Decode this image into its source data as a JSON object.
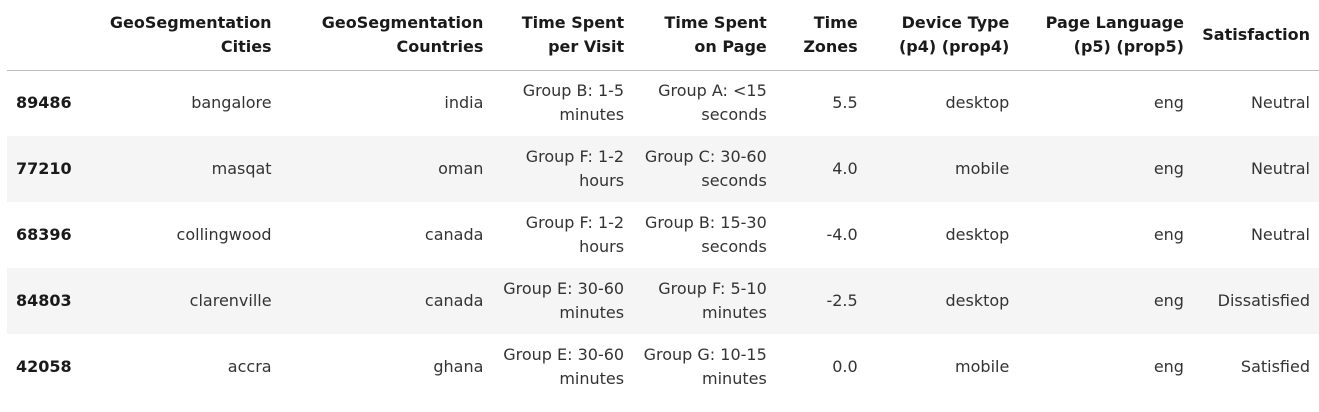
{
  "table": {
    "columns": [
      "",
      "GeoSegmentation Cities",
      "GeoSegmentation Countries",
      "Time Spent per Visit",
      "Time Spent on Page",
      "Time Zones",
      "Device Type (p4) (prop4)",
      "Page Language (p5) (prop5)",
      "Satisfaction"
    ],
    "rows": [
      {
        "index": "89486",
        "city": "bangalore",
        "country": "india",
        "time_visit": "Group B: 1-5 minutes",
        "time_page": "Group A: <15 seconds",
        "time_zone": "5.5",
        "device": "desktop",
        "language": "eng",
        "satisfaction": "Neutral"
      },
      {
        "index": "77210",
        "city": "masqat",
        "country": "oman",
        "time_visit": "Group F: 1-2 hours",
        "time_page": "Group C: 30-60 seconds",
        "time_zone": "4.0",
        "device": "mobile",
        "language": "eng",
        "satisfaction": "Neutral"
      },
      {
        "index": "68396",
        "city": "collingwood",
        "country": "canada",
        "time_visit": "Group F: 1-2 hours",
        "time_page": "Group B: 15-30 seconds",
        "time_zone": "-4.0",
        "device": "desktop",
        "language": "eng",
        "satisfaction": "Neutral"
      },
      {
        "index": "84803",
        "city": "clarenville",
        "country": "canada",
        "time_visit": "Group E: 30-60 minutes",
        "time_page": "Group F: 5-10 minutes",
        "time_zone": "-2.5",
        "device": "desktop",
        "language": "eng",
        "satisfaction": "Dissatisfied"
      },
      {
        "index": "42058",
        "city": "accra",
        "country": "ghana",
        "time_visit": "Group E: 30-60 minutes",
        "time_page": "Group G: 10-15 minutes",
        "time_zone": "0.0",
        "device": "mobile",
        "language": "eng",
        "satisfaction": "Satisfied"
      }
    ]
  }
}
